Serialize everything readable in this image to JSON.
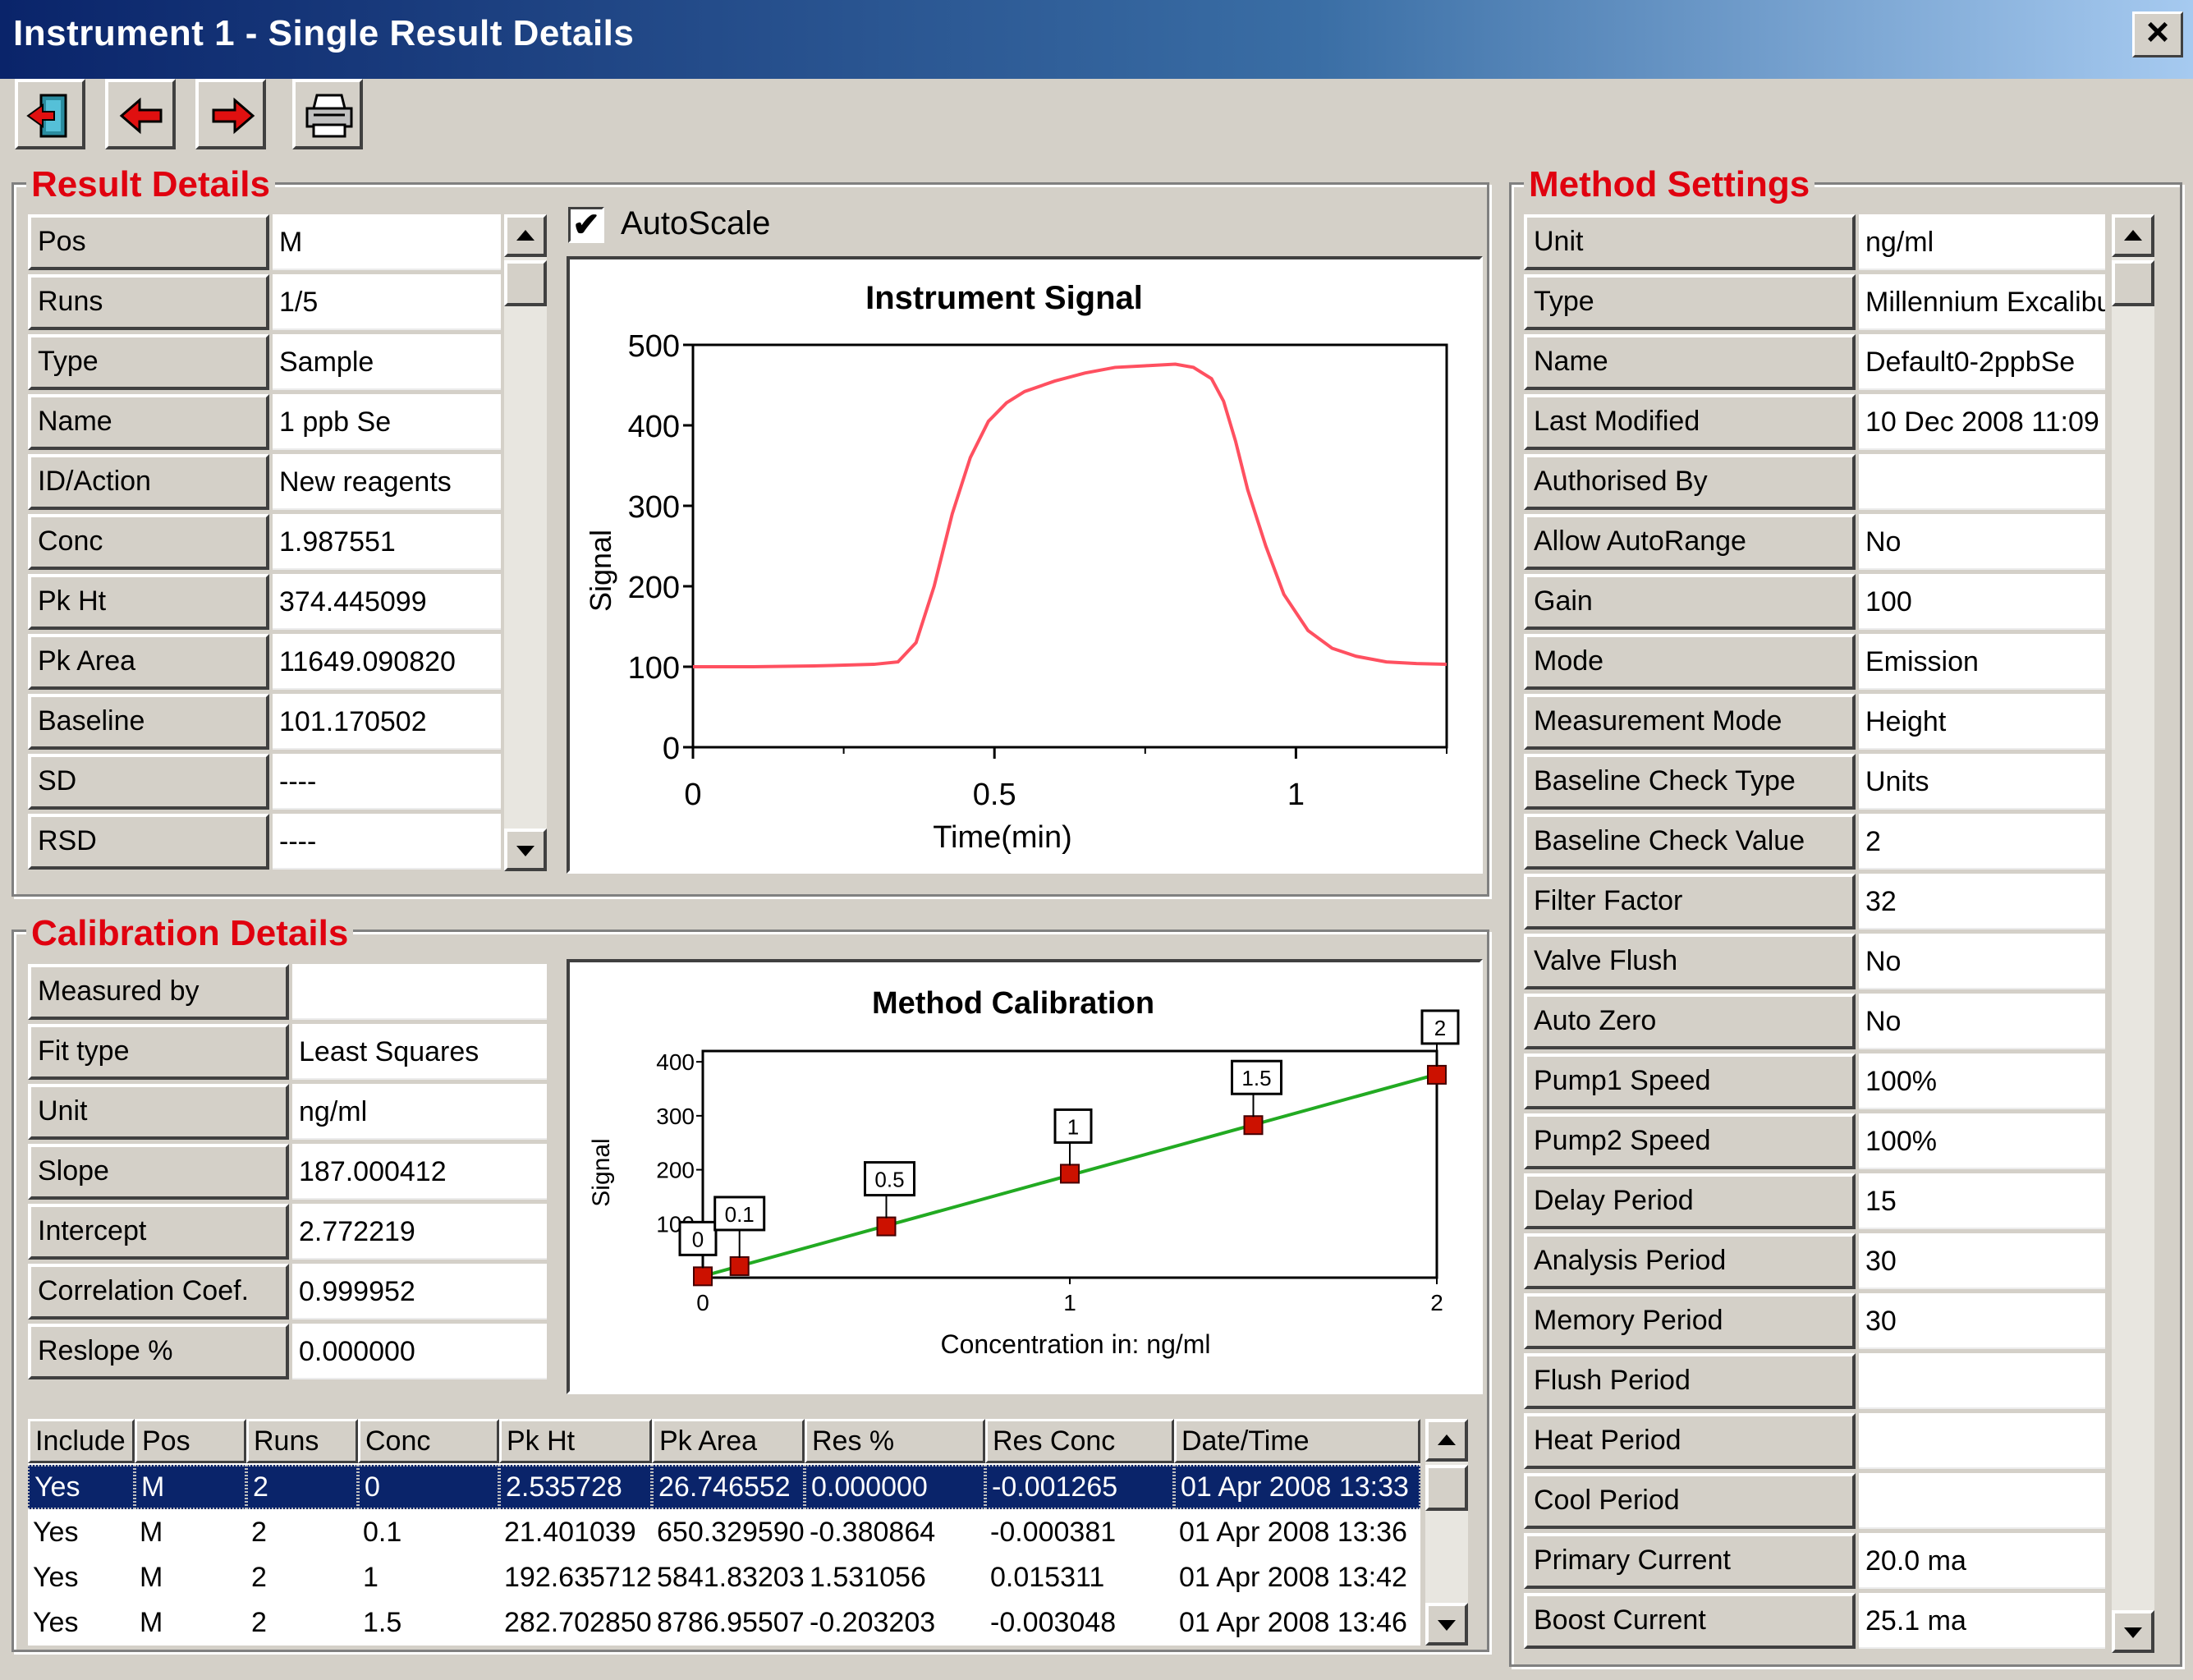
{
  "window": {
    "title": "Instrument 1 - Single Result Details",
    "close_label": "×"
  },
  "toolbar": {
    "buttons": [
      {
        "name": "exit-button",
        "icon": "exit-door-icon"
      },
      {
        "name": "previous-button",
        "icon": "arrow-left-icon"
      },
      {
        "name": "next-button",
        "icon": "arrow-right-icon"
      },
      {
        "name": "print-button",
        "icon": "printer-icon"
      }
    ]
  },
  "result_details": {
    "title": "Result Details",
    "rows": [
      {
        "label": "Pos",
        "value": "M"
      },
      {
        "label": "Runs",
        "value": "1/5"
      },
      {
        "label": "Type",
        "value": "Sample"
      },
      {
        "label": "Name",
        "value": "1 ppb Se"
      },
      {
        "label": "ID/Action",
        "value": "New reagents"
      },
      {
        "label": "Conc",
        "value": "1.987551"
      },
      {
        "label": "Pk Ht",
        "value": "374.445099"
      },
      {
        "label": "Pk Area",
        "value": "11649.090820"
      },
      {
        "label": "Baseline",
        "value": "101.170502"
      },
      {
        "label": "SD",
        "value": "----"
      },
      {
        "label": "RSD",
        "value": "----"
      }
    ]
  },
  "autoscale": {
    "label": "AutoScale",
    "checked": true,
    "mark": "✔"
  },
  "calibration_details": {
    "title": "Calibration Details",
    "rows": [
      {
        "label": "Measured by",
        "value": ""
      },
      {
        "label": "Fit type",
        "value": "Least Squares"
      },
      {
        "label": "Unit",
        "value": "ng/ml"
      },
      {
        "label": "Slope",
        "value": "187.000412"
      },
      {
        "label": "Intercept",
        "value": "2.772219"
      },
      {
        "label": "Correlation Coef.",
        "value": "0.999952"
      },
      {
        "label": "Reslope %",
        "value": "0.000000"
      }
    ]
  },
  "calibration_table": {
    "columns": [
      "Include",
      "Pos",
      "Runs",
      "Conc",
      "Pk Ht",
      "Pk Area",
      "Res %",
      "Res Conc",
      "Date/Time"
    ],
    "rows": [
      {
        "selected": true,
        "cells": [
          "Yes",
          "M",
          "2",
          "0",
          "2.535728",
          "26.746552",
          "0.000000",
          "-0.001265",
          "01 Apr 2008 13:33"
        ]
      },
      {
        "selected": false,
        "cells": [
          "Yes",
          "M",
          "2",
          "0.1",
          "21.401039",
          "650.329590",
          "-0.380864",
          "-0.000381",
          "01 Apr 2008 13:36"
        ]
      },
      {
        "selected": false,
        "cells": [
          "Yes",
          "M",
          "2",
          "1",
          "192.635712",
          "5841.83203",
          "1.531056",
          "0.015311",
          "01 Apr 2008 13:42"
        ]
      },
      {
        "selected": false,
        "cells": [
          "Yes",
          "M",
          "2",
          "1.5",
          "282.702850",
          "8786.95507",
          "-0.203203",
          "-0.003048",
          "01 Apr 2008 13:46"
        ]
      }
    ]
  },
  "method_settings": {
    "title": "Method Settings",
    "rows": [
      {
        "label": "Unit",
        "value": "ng/ml"
      },
      {
        "label": "Type",
        "value": "Millennium Excalibur"
      },
      {
        "label": "Name",
        "value": "Default0-2ppbSe"
      },
      {
        "label": "Last Modified",
        "value": "10 Dec 2008 11:09"
      },
      {
        "label": "Authorised By",
        "value": ""
      },
      {
        "label": "Allow AutoRange",
        "value": "No"
      },
      {
        "label": "Gain",
        "value": "100"
      },
      {
        "label": "Mode",
        "value": "Emission"
      },
      {
        "label": "Measurement Mode",
        "value": "Height"
      },
      {
        "label": "Baseline Check Type",
        "value": "Units"
      },
      {
        "label": "Baseline Check Value",
        "value": "2"
      },
      {
        "label": "Filter Factor",
        "value": "32"
      },
      {
        "label": "Valve Flush",
        "value": "No"
      },
      {
        "label": "Auto Zero",
        "value": "No"
      },
      {
        "label": "Pump1 Speed",
        "value": "100%"
      },
      {
        "label": "Pump2 Speed",
        "value": "100%"
      },
      {
        "label": "Delay Period",
        "value": "15"
      },
      {
        "label": "Analysis Period",
        "value": "30"
      },
      {
        "label": "Memory Period",
        "value": "30"
      },
      {
        "label": "Flush Period",
        "value": ""
      },
      {
        "label": "Heat Period",
        "value": ""
      },
      {
        "label": "Cool Period",
        "value": ""
      },
      {
        "label": "Primary Current",
        "value": "20.0 ma"
      },
      {
        "label": "Boost Current",
        "value": "25.1 ma"
      }
    ]
  },
  "colors": {
    "accent_red": "#e0000f",
    "selection": "#0a246a",
    "signal_line": "#ff5060",
    "calib_line": "#22aa22",
    "calib_point": "#cc1100"
  },
  "chart_data": [
    {
      "type": "line",
      "title": "Instrument Signal",
      "xlabel": "Time(min)",
      "ylabel": "Signal",
      "xlim": [
        0,
        1.25
      ],
      "ylim": [
        0,
        500
      ],
      "xticks": [
        "0",
        "0.5",
        "1"
      ],
      "yticks": [
        "0",
        "100",
        "200",
        "300",
        "400",
        "500"
      ],
      "series": [
        {
          "x": [
            0,
            0.1,
            0.2,
            0.3,
            0.34,
            0.37,
            0.4,
            0.43,
            0.46,
            0.49,
            0.52,
            0.55,
            0.6,
            0.65,
            0.7,
            0.75,
            0.8,
            0.83,
            0.86,
            0.88,
            0.9,
            0.92,
            0.95,
            0.98,
            1.02,
            1.06,
            1.1,
            1.15,
            1.2,
            1.25
          ],
          "y": [
            100,
            100,
            101,
            103,
            106,
            130,
            200,
            290,
            360,
            405,
            428,
            442,
            455,
            465,
            472,
            474,
            476,
            472,
            458,
            430,
            380,
            320,
            250,
            190,
            145,
            123,
            113,
            106,
            104,
            103
          ]
        }
      ]
    },
    {
      "type": "scatter",
      "title": "Method Calibration",
      "xlabel": "Concentration in: ng/ml",
      "ylabel": "Signal",
      "xlim": [
        0,
        2
      ],
      "ylim": [
        0,
        420
      ],
      "xticks": [
        "0",
        "1",
        "2"
      ],
      "yticks": [
        "100",
        "200",
        "300",
        "400"
      ],
      "points": [
        {
          "label": "0",
          "x": 0,
          "y": 2.5
        },
        {
          "label": "0.1",
          "x": 0.1,
          "y": 21.4
        },
        {
          "label": "0.5",
          "x": 0.5,
          "y": 95
        },
        {
          "label": "1",
          "x": 1,
          "y": 192.6
        },
        {
          "label": "1.5",
          "x": 1.5,
          "y": 282.7
        },
        {
          "label": "2",
          "x": 2,
          "y": 376
        }
      ],
      "fit": {
        "slope": 187.000412,
        "intercept": 2.772219
      }
    }
  ]
}
